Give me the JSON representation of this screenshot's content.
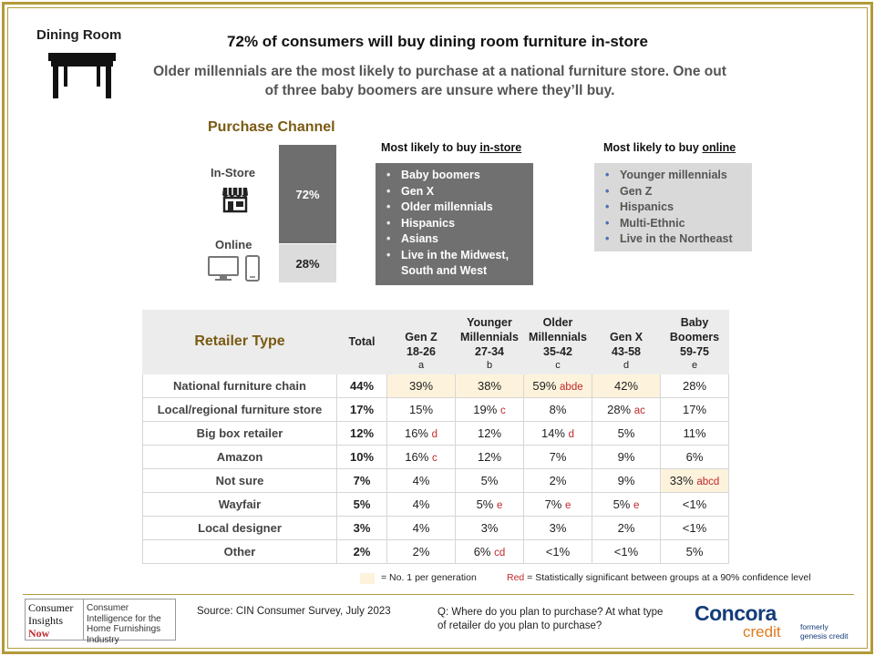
{
  "category": "Dining Room",
  "headline": "72% of consumers will buy dining room furniture in-store",
  "subhead": "Older millennials are the most likely to purchase at a national furniture store. One out of three baby boomers are unsure where they’ll buy.",
  "purchase_channel": {
    "title": "Purchase Channel",
    "instore_label": "In-Store",
    "online_label": "Online",
    "instore_value": "72%",
    "online_value": "28%",
    "instore_share": 72,
    "online_share": 28
  },
  "instore_box": {
    "title_prefix": "Most likely to buy ",
    "title_em": "in-store",
    "items": [
      "Baby boomers",
      "Gen X",
      "Older millennials",
      "Hispanics",
      "Asians",
      "Live in the Midwest, South and West"
    ]
  },
  "online_box": {
    "title_prefix": "Most likely to buy ",
    "title_em": "online",
    "items": [
      "Younger millennials",
      "Gen Z",
      "Hispanics",
      "Multi-Ethnic",
      "Live in the Northeast"
    ]
  },
  "retailer_table": {
    "title": "Retailer Type",
    "total_header": "Total",
    "columns": [
      {
        "line1": "Gen Z",
        "line2": "",
        "line3": "18-26",
        "letter": "a"
      },
      {
        "line1": "Younger",
        "line2": "Millennials",
        "line3": "27-34",
        "letter": "b"
      },
      {
        "line1": "Older",
        "line2": "Millennials",
        "line3": "35-42",
        "letter": "c"
      },
      {
        "line1": "Gen X",
        "line2": "",
        "line3": "43-58",
        "letter": "d"
      },
      {
        "line1": "Baby",
        "line2": "Boomers",
        "line3": "59-75",
        "letter": "e"
      }
    ],
    "rows": [
      {
        "label": "National furniture chain",
        "total": "44%",
        "cells": [
          [
            "39%",
            ""
          ],
          [
            "38%",
            ""
          ],
          [
            "59%",
            "abde"
          ],
          [
            "42%",
            ""
          ],
          [
            "28%",
            ""
          ]
        ],
        "top": [
          0,
          1,
          2,
          3
        ]
      },
      {
        "label": "Local/regional furniture store",
        "total": "17%",
        "cells": [
          [
            "15%",
            ""
          ],
          [
            "19%",
            "c"
          ],
          [
            "8%",
            ""
          ],
          [
            "28%",
            "ac"
          ],
          [
            "17%",
            ""
          ]
        ],
        "top": []
      },
      {
        "label": "Big box retailer",
        "total": "12%",
        "cells": [
          [
            "16%",
            "d"
          ],
          [
            "12%",
            ""
          ],
          [
            "14%",
            "d"
          ],
          [
            "5%",
            ""
          ],
          [
            "11%",
            ""
          ]
        ],
        "top": []
      },
      {
        "label": "Amazon",
        "total": "10%",
        "cells": [
          [
            "16%",
            "c"
          ],
          [
            "12%",
            ""
          ],
          [
            "7%",
            ""
          ],
          [
            "9%",
            ""
          ],
          [
            "6%",
            ""
          ]
        ],
        "top": []
      },
      {
        "label": "Not sure",
        "total": "7%",
        "cells": [
          [
            "4%",
            ""
          ],
          [
            "5%",
            ""
          ],
          [
            "2%",
            ""
          ],
          [
            "9%",
            ""
          ],
          [
            "33%",
            "abcd"
          ]
        ],
        "top": [
          4
        ]
      },
      {
        "label": "Wayfair",
        "total": "5%",
        "cells": [
          [
            "4%",
            ""
          ],
          [
            "5%",
            "e"
          ],
          [
            "7%",
            "e"
          ],
          [
            "5%",
            "e"
          ],
          [
            "<1%",
            ""
          ]
        ],
        "top": []
      },
      {
        "label": "Local designer",
        "total": "3%",
        "cells": [
          [
            "4%",
            ""
          ],
          [
            "3%",
            ""
          ],
          [
            "3%",
            ""
          ],
          [
            "2%",
            ""
          ],
          [
            "<1%",
            ""
          ]
        ],
        "top": []
      },
      {
        "label": "Other",
        "total": "2%",
        "cells": [
          [
            "2%",
            ""
          ],
          [
            "6%",
            "cd"
          ],
          [
            "<1%",
            ""
          ],
          [
            "<1%",
            ""
          ],
          [
            "5%",
            ""
          ]
        ],
        "top": []
      }
    ]
  },
  "legend": {
    "top_text": "= No. 1 per generation",
    "sig_red": "Red",
    "sig_text": " = Statistically significant between groups at a 90% confidence level"
  },
  "footer": {
    "cin_logo_text": [
      "Consumer",
      "Insights",
      "Now"
    ],
    "cin_tagline": "Consumer Intelligence for the Home Furnishings Industry",
    "source": "Source: CIN Consumer Survey, July 2023",
    "question": "Q: Where do you plan to purchase? At what type of retailer do you plan to purchase?",
    "concora_name": "Concora",
    "concora_sub": "credit",
    "concora_note": "formerly genesis credit"
  },
  "colors": {
    "gold": "#b29a3a",
    "title_brown": "#7a5a12",
    "sig_red": "#c0282c",
    "top_highlight": "#fdf3dc"
  }
}
